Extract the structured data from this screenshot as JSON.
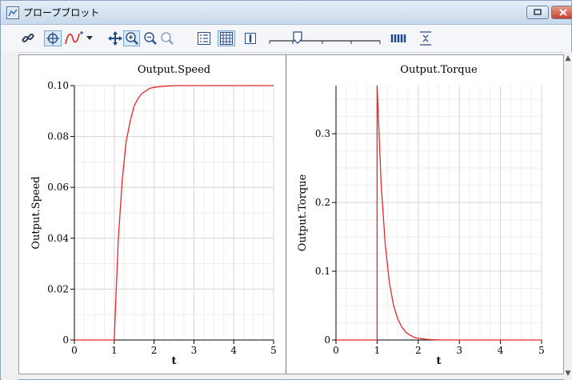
{
  "window": {
    "title": "プロープブロット"
  },
  "toolbar": {
    "items": [
      "link-icon",
      "target-icon",
      "curve-icon",
      "dropdown-arrow-icon",
      "pan-icon",
      "zoom-box-icon",
      "zoom-out-icon",
      "zoom-reset-icon",
      "legend-icon",
      "grid-icon",
      "cursor-icon",
      "slider",
      "bars-icon",
      "fit-icon"
    ]
  },
  "colors": {
    "curve": "#e8262b",
    "grid": "#d7d7d7",
    "minor_grid": "#eeeeee",
    "axis": "#000000"
  },
  "chart_data": [
    {
      "type": "line",
      "title": "Output.Speed",
      "xlabel": "t",
      "ylabel": "Output.Speed",
      "xlim": [
        0,
        5
      ],
      "ylim": [
        0,
        0.1
      ],
      "x_ticks": [
        "0",
        "1",
        "2",
        "3",
        "4",
        "5"
      ],
      "y_ticks": [
        "0",
        "0.02",
        "0.04",
        "0.06",
        "0.08",
        "0.10"
      ],
      "y_tick_values": [
        0,
        0.02,
        0.04,
        0.06,
        0.08,
        0.1
      ],
      "grid": true,
      "series": [
        {
          "x": [
            0,
            1,
            1.1,
            1.2,
            1.3,
            1.4,
            1.5,
            1.6,
            1.7,
            1.8,
            1.9,
            2.0,
            2.2,
            2.4,
            2.6,
            2.8,
            3.0,
            4.0,
            5.0
          ],
          "y": [
            0,
            0,
            0.039,
            0.063,
            0.078,
            0.086,
            0.092,
            0.095,
            0.097,
            0.098,
            0.099,
            0.0993,
            0.0997,
            0.0999,
            0.1,
            0.1,
            0.1,
            0.1,
            0.1
          ]
        }
      ]
    },
    {
      "type": "line",
      "title": "Output.Torque",
      "xlabel": "t",
      "ylabel": "Output.Torque",
      "xlim": [
        0,
        5
      ],
      "ylim": [
        0,
        0.37
      ],
      "x_ticks": [
        "0",
        "1",
        "2",
        "3",
        "4",
        "5"
      ],
      "y_ticks": [
        "0",
        "0.1",
        "0.2",
        "0.3"
      ],
      "y_tick_values": [
        0,
        0.1,
        0.2,
        0.3
      ],
      "grid": true,
      "series": [
        {
          "x": [
            0,
            1,
            1,
            1.1,
            1.2,
            1.3,
            1.4,
            1.5,
            1.6,
            1.7,
            1.8,
            1.9,
            2.0,
            2.2,
            2.4,
            2.6,
            3.0,
            4.0,
            5.0
          ],
          "y": [
            0,
            0,
            0.37,
            0.225,
            0.137,
            0.083,
            0.05,
            0.031,
            0.019,
            0.011,
            0.007,
            0.004,
            0.0025,
            0.001,
            0.0003,
            0.0001,
            0,
            0,
            0
          ]
        }
      ]
    }
  ]
}
